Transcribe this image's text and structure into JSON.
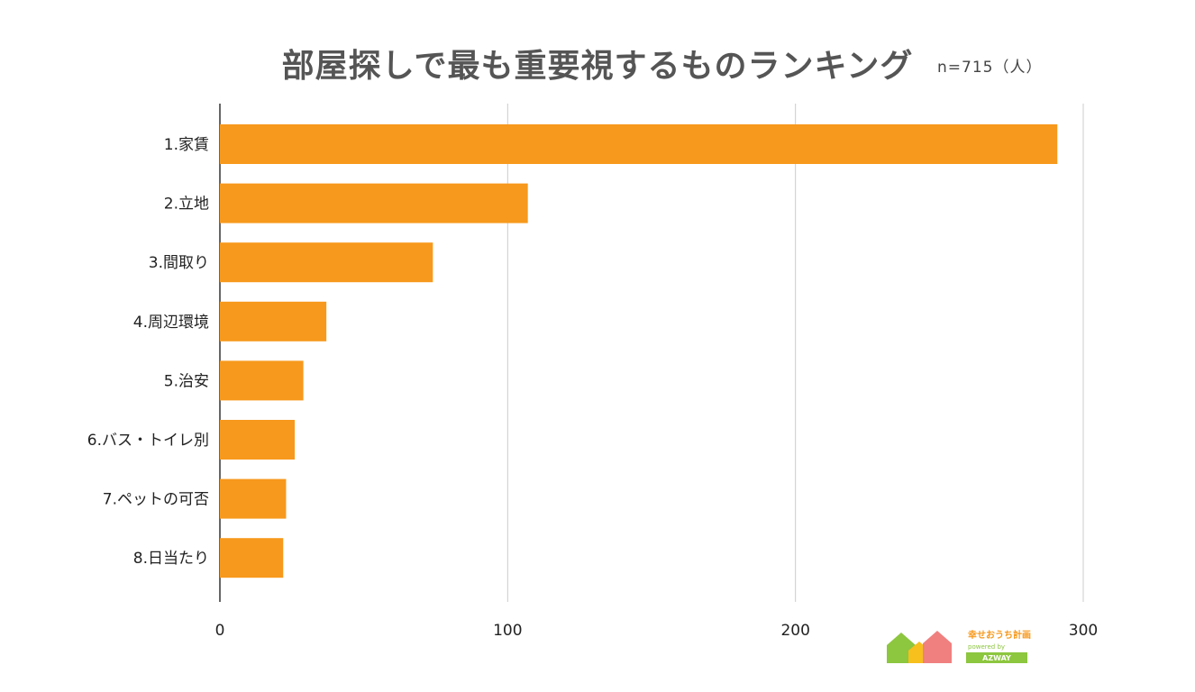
{
  "chart_data": {
    "type": "bar",
    "orientation": "horizontal",
    "title": "部屋探しで最も重要視するものランキング",
    "subtitle": "n=715（人）",
    "categories": [
      "1.家賃",
      "2.立地",
      "3.間取り",
      "4.周辺環境",
      "5.治安",
      "6.バス・トイレ別",
      "7.ペットの可否",
      "8.日当たり"
    ],
    "values": [
      291,
      107,
      74,
      37,
      29,
      26,
      23,
      22
    ],
    "xlabel": "",
    "ylabel": "",
    "xlim": [
      0,
      300
    ],
    "xticks": [
      0,
      100,
      200,
      300
    ],
    "bar_color": "#F7991C",
    "grid": true
  },
  "logo": {
    "text_main": "幸せおうち計画",
    "text_sub": "powered by",
    "text_brand": "AZWAY"
  }
}
